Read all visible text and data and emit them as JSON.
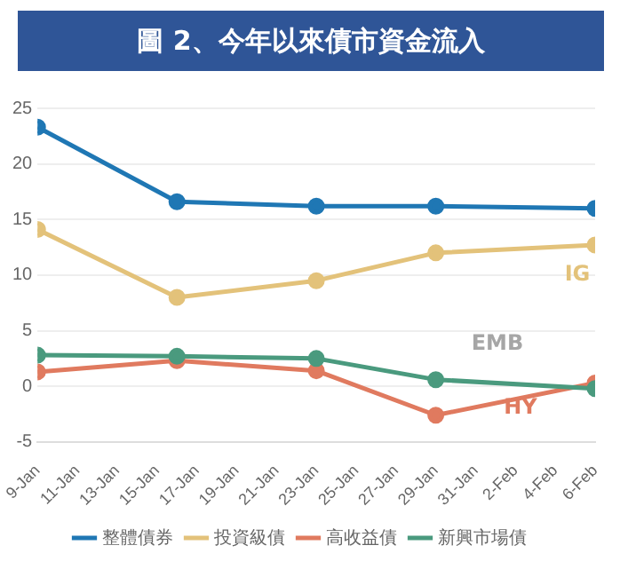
{
  "chart_data": {
    "type": "line",
    "title": "圖 2、今年以來債市資金流入",
    "x": [
      "--01-09",
      "--01-16",
      "--01-23",
      "--01-29",
      "--02-06"
    ],
    "series": [
      {
        "name": "整體債券",
        "color": "#1f77b4",
        "values": [
          23.3,
          16.6,
          16.2,
          16.2,
          16.0
        ]
      },
      {
        "name": "投資級債",
        "color": "#e3c27a",
        "values": [
          14.1,
          8.0,
          9.5,
          12.0,
          12.7
        ]
      },
      {
        "name": "高收益債",
        "color": "#e07a5f",
        "values": [
          1.3,
          2.3,
          1.4,
          -2.6,
          0.3
        ]
      },
      {
        "name": "新興市場債",
        "color": "#4a9a7e",
        "values": [
          2.8,
          2.7,
          2.5,
          0.6,
          -0.2
        ]
      }
    ],
    "xlim": [
      "--01-09",
      "--02-06"
    ],
    "xticks": [
      {
        "value": "--01-09",
        "label": "9-Jan"
      },
      {
        "value": "--01-11",
        "label": "11-Jan"
      },
      {
        "value": "--01-13",
        "label": "13-Jan"
      },
      {
        "value": "--01-15",
        "label": "15-Jan"
      },
      {
        "value": "--01-17",
        "label": "17-Jan"
      },
      {
        "value": "--01-19",
        "label": "19-Jan"
      },
      {
        "value": "--01-21",
        "label": "21-Jan"
      },
      {
        "value": "--01-23",
        "label": "23-Jan"
      },
      {
        "value": "--01-25",
        "label": "25-Jan"
      },
      {
        "value": "--01-27",
        "label": "27-Jan"
      },
      {
        "value": "--01-29",
        "label": "29-Jan"
      },
      {
        "value": "--01-31",
        "label": "31-Jan"
      },
      {
        "value": "--02-02",
        "label": "2-Feb"
      },
      {
        "value": "--02-04",
        "label": "4-Feb"
      },
      {
        "value": "--02-06",
        "label": "6-Feb"
      }
    ],
    "ylim": [
      -5,
      25
    ],
    "yticks": [
      -5,
      0,
      5,
      10,
      15,
      20,
      25
    ],
    "annotations": [
      "IG",
      "EMB",
      "HY"
    ],
    "grid": "y",
    "legend": "bottom",
    "marker": "circle",
    "line_style": "solid"
  }
}
